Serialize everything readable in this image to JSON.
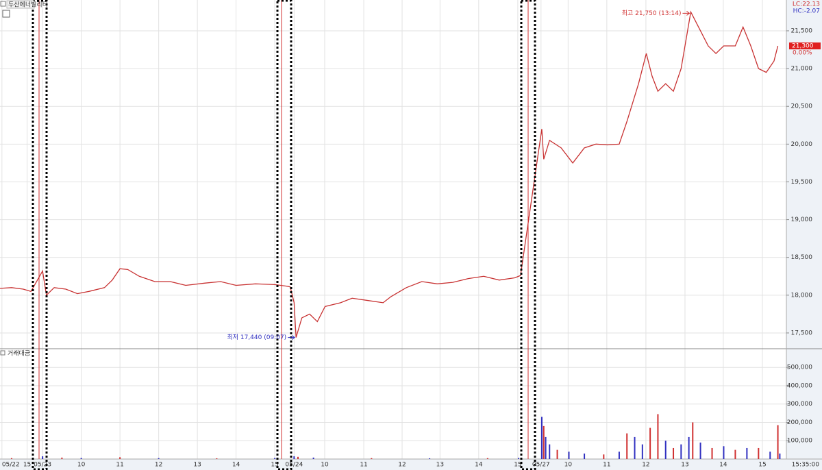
{
  "chart_data": [
    {
      "type": "line",
      "title": "두산에너빌리티",
      "color": "#c83232",
      "x": [
        -1.1,
        -0.8,
        -0.5,
        -0.3,
        0,
        0.1,
        0.3,
        0.6,
        0.9,
        1.2,
        1.6,
        1.8,
        2.0,
        2.2,
        2.5,
        2.9,
        3.3,
        3.7,
        4.2,
        4.6,
        5.0,
        5.5,
        6.0,
        6.3,
        6.4,
        6.5,
        6.55,
        6.7,
        6.9,
        7.1,
        7.3,
        7.7,
        8.0,
        8.4,
        8.8,
        9.0,
        9.4,
        9.8,
        10.2,
        10.6,
        11.0,
        11.4,
        11.8,
        12.2,
        12.35,
        12.9,
        12.95,
        13.1,
        13.4,
        13.7,
        14.0,
        14.3,
        14.6,
        14.9,
        15.1,
        15.4,
        15.6,
        15.75,
        15.9,
        16.1,
        16.3,
        16.5,
        16.6,
        16.75,
        17.0,
        17.2,
        17.4,
        17.6,
        17.9,
        18.1,
        18.3,
        18.5,
        18.7,
        18.9,
        19.0
      ],
      "values": [
        18090,
        18100,
        18080,
        18050,
        18320,
        18000,
        18100,
        18080,
        18020,
        18050,
        18100,
        18200,
        18350,
        18340,
        18250,
        18180,
        18180,
        18130,
        18160,
        18180,
        18130,
        18150,
        18140,
        18120,
        18110,
        17900,
        17440,
        17700,
        17750,
        17650,
        17850,
        17900,
        17960,
        17930,
        17900,
        17980,
        18100,
        18180,
        18150,
        18170,
        18220,
        18250,
        18200,
        18230,
        18260,
        20200,
        19800,
        20050,
        19950,
        19750,
        19950,
        20000,
        19990,
        20000,
        20300,
        20800,
        21200,
        20900,
        20700,
        20800,
        20700,
        21000,
        21300,
        21750,
        21500,
        21300,
        21200,
        21300,
        21300,
        21550,
        21300,
        21000,
        20950,
        21100,
        21300
      ],
      "xlim": [
        -1.1,
        19.22
      ],
      "ylim": [
        17300,
        21908
      ],
      "yticks": [
        {
          "value": 17500,
          "label": "17,500"
        },
        {
          "value": 18000,
          "label": "18,000"
        },
        {
          "value": 18500,
          "label": "18,500"
        },
        {
          "value": 19000,
          "label": "19,000"
        },
        {
          "value": 19500,
          "label": "19,500"
        },
        {
          "value": 20000,
          "label": "20,000"
        },
        {
          "value": 20500,
          "label": "20,500"
        },
        {
          "value": 21000,
          "label": "21,000"
        },
        {
          "value": 21500,
          "label": "21,500"
        }
      ],
      "annotations": [
        "최고 21,750 (13:14)",
        "최저 17,440 (09:07)"
      ],
      "current_price": "21,300",
      "change": "0.00%",
      "lc": "LC:22.13",
      "hc": "HC:-2.07",
      "grid": true
    },
    {
      "type": "bar",
      "title": "거래대금",
      "x": [
        -0.8,
        0,
        0.5,
        1.0,
        2.0,
        3.0,
        4.5,
        6.0,
        6.5,
        6.6,
        7.0,
        8.5,
        10.0,
        11.5,
        12.3,
        12.9,
        12.95,
        13.0,
        13.1,
        13.3,
        13.6,
        14.0,
        14.5,
        14.9,
        15.1,
        15.3,
        15.5,
        15.7,
        15.9,
        16.1,
        16.3,
        16.5,
        16.7,
        16.8,
        17.0,
        17.3,
        17.6,
        17.9,
        18.2,
        18.5,
        18.8,
        19.0,
        19.05
      ],
      "values": [
        5000,
        15000,
        8000,
        6000,
        10000,
        5000,
        4000,
        6000,
        15000,
        12000,
        8000,
        5000,
        4000,
        5000,
        6000,
        230000,
        180000,
        120000,
        80000,
        50000,
        40000,
        30000,
        25000,
        40000,
        140000,
        120000,
        80000,
        170000,
        245000,
        100000,
        60000,
        80000,
        120000,
        200000,
        90000,
        60000,
        70000,
        50000,
        60000,
        60000,
        40000,
        185000,
        30000
      ],
      "colors": [
        "#d03030",
        "#3030c0",
        "#d03030",
        "#3030c0",
        "#d03030",
        "#3030c0",
        "#d03030",
        "#3030c0",
        "#3030c0",
        "#d03030",
        "#3030c0",
        "#d03030",
        "#3030c0",
        "#d03030",
        "#3030c0",
        "#3030c0",
        "#d03030",
        "#3030c0",
        "#3030c0",
        "#d03030",
        "#3030c0",
        "#3030c0",
        "#d03030",
        "#3030c0",
        "#d03030",
        "#3030c0",
        "#3030c0",
        "#d03030",
        "#d03030",
        "#3030c0",
        "#d03030",
        "#3030c0",
        "#3030c0",
        "#d03030",
        "#3030c0",
        "#d03030",
        "#3030c0",
        "#d03030",
        "#3030c0",
        "#d03030",
        "#3030c0",
        "#d03030",
        "#3030c0"
      ],
      "ylim": [
        0,
        598000
      ],
      "yticks": [
        {
          "value": 100000,
          "label": "100,000"
        },
        {
          "value": 200000,
          "label": "200,000"
        },
        {
          "value": 300000,
          "label": "300,000"
        },
        {
          "value": 400000,
          "label": "400,000"
        },
        {
          "value": 500000,
          "label": "500,000"
        }
      ],
      "xticks": [
        {
          "value": -1.05,
          "label": "05/22"
        },
        {
          "value": -0.4,
          "label": "15"
        },
        {
          "value": 0,
          "label": "05/23"
        },
        {
          "value": 1,
          "label": "10"
        },
        {
          "value": 2,
          "label": "11"
        },
        {
          "value": 3,
          "label": "12"
        },
        {
          "value": 4,
          "label": "13"
        },
        {
          "value": 5,
          "label": "14"
        },
        {
          "value": 6,
          "label": "15"
        },
        {
          "value": 6.5,
          "label": "05/24"
        },
        {
          "value": 7.29,
          "label": "10"
        },
        {
          "value": 8.3,
          "label": "11"
        },
        {
          "value": 9.29,
          "label": "12"
        },
        {
          "value": 10.27,
          "label": "13"
        },
        {
          "value": 11.27,
          "label": "14"
        },
        {
          "value": 12.28,
          "label": "15"
        },
        {
          "value": 12.88,
          "label": "05/27"
        },
        {
          "value": 13.58,
          "label": "10"
        },
        {
          "value": 14.58,
          "label": "11"
        },
        {
          "value": 15.59,
          "label": "12"
        },
        {
          "value": 16.6,
          "label": "13"
        },
        {
          "value": 17.59,
          "label": "14"
        },
        {
          "value": 18.6,
          "label": "15"
        }
      ],
      "time": "15:35:00",
      "grid": true
    }
  ]
}
